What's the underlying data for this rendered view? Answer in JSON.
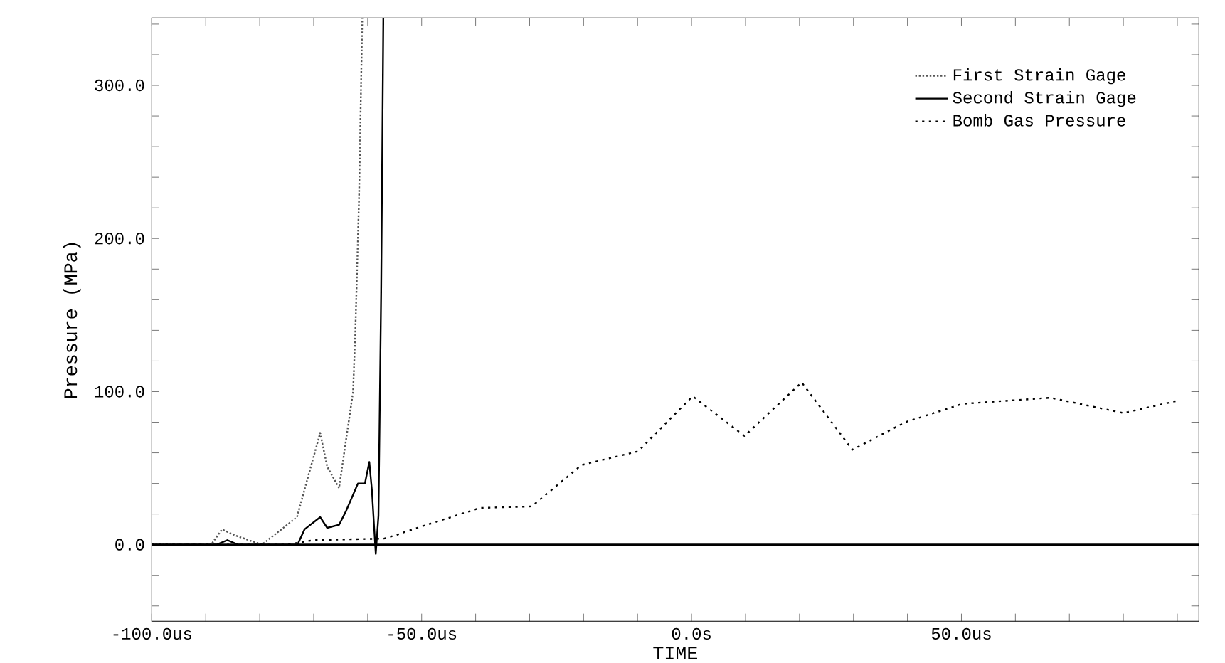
{
  "chart_data": {
    "type": "line",
    "xlabel": "TIME",
    "ylabel": "Pressure (MPa)",
    "xlim": [
      -100,
      94
    ],
    "ylim": [
      -50,
      344
    ],
    "xticks": [
      {
        "value": -100,
        "label": "-100.0us"
      },
      {
        "value": -90,
        "label": null
      },
      {
        "value": -80,
        "label": null
      },
      {
        "value": -70,
        "label": null
      },
      {
        "value": -60,
        "label": null
      },
      {
        "value": -50,
        "label": "-50.0us"
      },
      {
        "value": -40,
        "label": null
      },
      {
        "value": -30,
        "label": null
      },
      {
        "value": -20,
        "label": null
      },
      {
        "value": -10,
        "label": null
      },
      {
        "value": 0,
        "label": "0.0s"
      },
      {
        "value": 10,
        "label": null
      },
      {
        "value": 20,
        "label": null
      },
      {
        "value": 30,
        "label": null
      },
      {
        "value": 40,
        "label": null
      },
      {
        "value": 50,
        "label": "50.0us"
      },
      {
        "value": 60,
        "label": null
      },
      {
        "value": 70,
        "label": null
      },
      {
        "value": 80,
        "label": null
      },
      {
        "value": 90,
        "label": null
      }
    ],
    "yticks": [
      {
        "value": -40,
        "label": null
      },
      {
        "value": -20,
        "label": null
      },
      {
        "value": 0,
        "label": "0.0"
      },
      {
        "value": 20,
        "label": null
      },
      {
        "value": 40,
        "label": null
      },
      {
        "value": 60,
        "label": null
      },
      {
        "value": 80,
        "label": null
      },
      {
        "value": 100,
        "label": "100.0"
      },
      {
        "value": 120,
        "label": null
      },
      {
        "value": 140,
        "label": null
      },
      {
        "value": 160,
        "label": null
      },
      {
        "value": 180,
        "label": null
      },
      {
        "value": 200,
        "label": "200.0"
      },
      {
        "value": 220,
        "label": null
      },
      {
        "value": 240,
        "label": null
      },
      {
        "value": 260,
        "label": null
      },
      {
        "value": 280,
        "label": null
      },
      {
        "value": 300,
        "label": "300.0"
      },
      {
        "value": 320,
        "label": null
      },
      {
        "value": 340,
        "label": null
      }
    ],
    "grid": false,
    "legend": "top right",
    "ref_lines": [
      {
        "axis": "y",
        "value": 0,
        "color": "#000000",
        "line_style": "solid"
      }
    ],
    "series": [
      {
        "name": "First Strain Gage",
        "color": "#555555",
        "line_style": "dotted",
        "x": [
          -100,
          -89,
          -87,
          -84.5,
          -79.6,
          -73.1,
          -68.8,
          -67.5,
          -65.3,
          -62.7,
          -62.3,
          -61.6,
          -61.0
        ],
        "values": [
          0,
          0,
          10,
          6,
          0,
          18,
          73,
          51,
          37,
          100,
          137,
          226,
          344
        ]
      },
      {
        "name": "Second Strain Gage",
        "color": "#000000",
        "line_style": "solid",
        "x": [
          -100,
          -88,
          -86,
          -84,
          -73,
          -71.7,
          -68.8,
          -67.5,
          -65.3,
          -64.0,
          -61.8,
          -60.5,
          -59.7,
          -59.2,
          -58.8,
          -58.5,
          -58.0,
          -57.5,
          -57.1
        ],
        "values": [
          0,
          0,
          3,
          0,
          0,
          10,
          18,
          11,
          13,
          22,
          40,
          40,
          54,
          35,
          11,
          -6,
          19,
          166,
          344
        ]
      },
      {
        "name": "Bomb Gas Pressure",
        "color": "#000000",
        "line_style": "dotted",
        "x": [
          -100,
          -75,
          -70,
          -57,
          -55,
          -51.7,
          -39.2,
          -29.6,
          -20.4,
          -9.9,
          0.2,
          9.8,
          20.4,
          29.8,
          39.6,
          50.2,
          66.5,
          80,
          90
        ],
        "values": [
          0,
          0,
          3,
          4,
          6,
          10,
          24,
          25,
          52,
          61,
          97,
          71,
          106,
          62,
          80,
          92,
          96,
          86,
          94
        ]
      }
    ]
  }
}
